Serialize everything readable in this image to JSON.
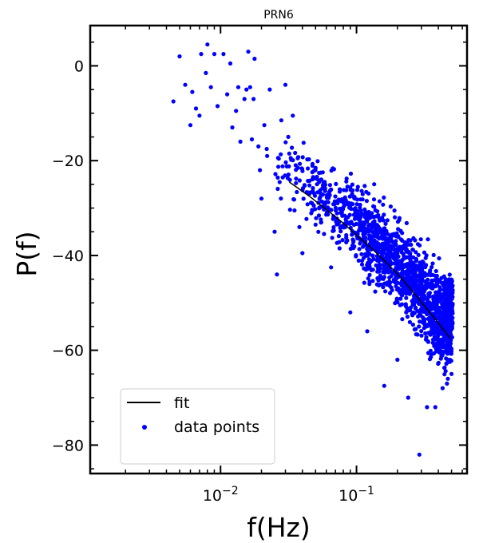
{
  "chart_data": {
    "type": "scatter",
    "title": "PRN6",
    "xlabel": "f(Hz)",
    "ylabel": "P(f)",
    "xscale": "log",
    "xlim": [
      0.0011,
      0.65
    ],
    "ylim": [
      -86,
      8.5
    ],
    "grid": false,
    "legend_position": "lower-left",
    "x_tick_labels": [
      {
        "value": 0.01,
        "base": "10",
        "exp": "−2"
      },
      {
        "value": 0.1,
        "base": "10",
        "exp": "−1"
      }
    ],
    "y_ticks": [
      0,
      -20,
      -40,
      -60,
      -80
    ],
    "y_tick_labels": [
      "0",
      "−20",
      "−40",
      "−60",
      "−80"
    ],
    "series": [
      {
        "name": "fit",
        "kind": "line",
        "color": "#000000",
        "x": [
          0.032,
          0.045,
          0.06,
          0.08,
          0.1,
          0.13,
          0.17,
          0.22,
          0.28,
          0.35,
          0.42,
          0.49
        ],
        "y": [
          -24.5,
          -27.5,
          -30.3,
          -33.2,
          -35.7,
          -38.6,
          -41.8,
          -45.2,
          -48.8,
          -52.2,
          -55.0,
          -57.5
        ]
      },
      {
        "name": "data points",
        "kind": "scatter",
        "color": "#0000ff",
        "x": [
          0.0045,
          0.005,
          0.0055,
          0.006,
          0.0062,
          0.0066,
          0.007,
          0.0072,
          0.0078,
          0.008,
          0.0085,
          0.009,
          0.0095,
          0.0105,
          0.0112,
          0.0118,
          0.0122,
          0.013,
          0.0135,
          0.014,
          0.015,
          0.0155,
          0.016,
          0.0165,
          0.017,
          0.0175,
          0.0178,
          0.019,
          0.0195,
          0.02,
          0.021,
          0.022,
          0.023,
          0.025,
          0.026,
          0.028,
          0.03,
          0.032,
          0.034,
          0.035,
          0.037,
          0.038,
          0.04,
          0.045,
          0.05,
          0.055,
          0.065,
          0.075,
          0.09,
          0.12,
          0.16,
          0.2,
          0.24,
          0.29,
          0.33,
          0.38,
          0.43,
          0.47,
          0.5,
          0.3,
          0.44
        ],
        "y": [
          -7.5,
          2,
          -4,
          -12.5,
          -5.5,
          -9,
          -10.5,
          2.5,
          -1.5,
          4.5,
          -4.5,
          2.5,
          -8.5,
          2.5,
          -6,
          0.5,
          -13,
          -9.5,
          -4.5,
          -16,
          -7,
          -5,
          3,
          -4.5,
          -15.5,
          -7,
          1.5,
          -17,
          -22,
          -28,
          -12.5,
          -19,
          -5,
          -35,
          -44,
          -11.5,
          -4,
          -18.5,
          -10.5,
          -30.5,
          -19.5,
          -34,
          -39.5,
          -27,
          -33.5,
          -24,
          -42.5,
          -38.5,
          -52,
          -56,
          -67.5,
          -62,
          -70,
          -82,
          -72,
          -72,
          -68,
          -66,
          -65,
          -46,
          -50
        ]
      }
    ]
  }
}
